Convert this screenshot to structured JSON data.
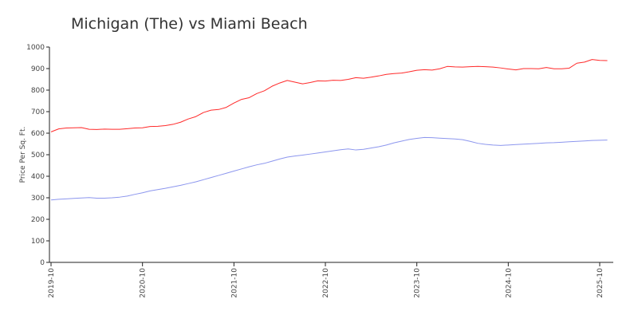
{
  "chart_data": {
    "type": "line",
    "title": "Michigan (The) vs Miami Beach",
    "xlabel": "",
    "ylabel": "Price Per Sq. Ft.",
    "ylim": [
      0,
      1000
    ],
    "yticks": [
      0,
      100,
      200,
      300,
      400,
      500,
      600,
      700,
      800,
      900,
      1000
    ],
    "xlim": [
      "2019-10",
      "2025-11"
    ],
    "xticks": [
      "2019-10",
      "2020-10",
      "2021-10",
      "2022-10",
      "2023-10",
      "2024-10",
      "2025-10"
    ],
    "grid": false,
    "legend": "none",
    "x": [
      "2019-10",
      "2019-11",
      "2019-12",
      "2020-01",
      "2020-02",
      "2020-03",
      "2020-04",
      "2020-05",
      "2020-06",
      "2020-07",
      "2020-08",
      "2020-09",
      "2020-10",
      "2020-11",
      "2020-12",
      "2021-01",
      "2021-02",
      "2021-03",
      "2021-04",
      "2021-05",
      "2021-06",
      "2021-07",
      "2021-08",
      "2021-09",
      "2021-10",
      "2021-11",
      "2021-12",
      "2022-01",
      "2022-02",
      "2022-03",
      "2022-04",
      "2022-05",
      "2022-06",
      "2022-07",
      "2022-08",
      "2022-09",
      "2022-10",
      "2022-11",
      "2022-12",
      "2023-01",
      "2023-02",
      "2023-03",
      "2023-04",
      "2023-05",
      "2023-06",
      "2023-07",
      "2023-08",
      "2023-09",
      "2023-10",
      "2023-11",
      "2023-12",
      "2024-01",
      "2024-02",
      "2024-03",
      "2024-04",
      "2024-05",
      "2024-06",
      "2024-07",
      "2024-08",
      "2024-09",
      "2024-10",
      "2024-11",
      "2024-12",
      "2025-01",
      "2025-02",
      "2025-03",
      "2025-04",
      "2025-05",
      "2025-06",
      "2025-07",
      "2025-08",
      "2025-09",
      "2025-10",
      "2025-11"
    ],
    "series": [
      {
        "color": "#ff2a2a",
        "values": [
          606,
          620,
          624,
          625,
          626,
          618,
          617,
          619,
          618,
          618,
          621,
          624,
          625,
          631,
          632,
          635,
          641,
          651,
          666,
          677,
          696,
          707,
          710,
          720,
          740,
          757,
          765,
          784,
          797,
          818,
          833,
          845,
          837,
          829,
          835,
          843,
          842,
          846,
          845,
          850,
          858,
          855,
          860,
          866,
          873,
          877,
          879,
          885,
          892,
          895,
          893,
          899,
          910,
          908,
          907,
          909,
          910,
          909,
          907,
          903,
          898,
          894,
          900,
          900,
          899,
          905,
          899,
          899,
          902,
          925,
          930,
          942,
          938,
          937
        ]
      },
      {
        "color": "#8c96ee",
        "values": [
          290,
          293,
          295,
          297,
          299,
          301,
          298,
          298,
          300,
          303,
          308,
          316,
          323,
          332,
          338,
          344,
          351,
          358,
          366,
          374,
          384,
          394,
          404,
          414,
          424,
          434,
          444,
          453,
          460,
          470,
          480,
          489,
          494,
          498,
          503,
          508,
          513,
          518,
          523,
          527,
          522,
          525,
          531,
          537,
          545,
          555,
          563,
          571,
          576,
          580,
          579,
          577,
          575,
          573,
          570,
          562,
          553,
          548,
          545,
          543,
          545,
          547,
          549,
          551,
          553,
          555,
          556,
          558,
          560,
          562,
          564,
          566,
          567,
          568
        ]
      }
    ]
  }
}
